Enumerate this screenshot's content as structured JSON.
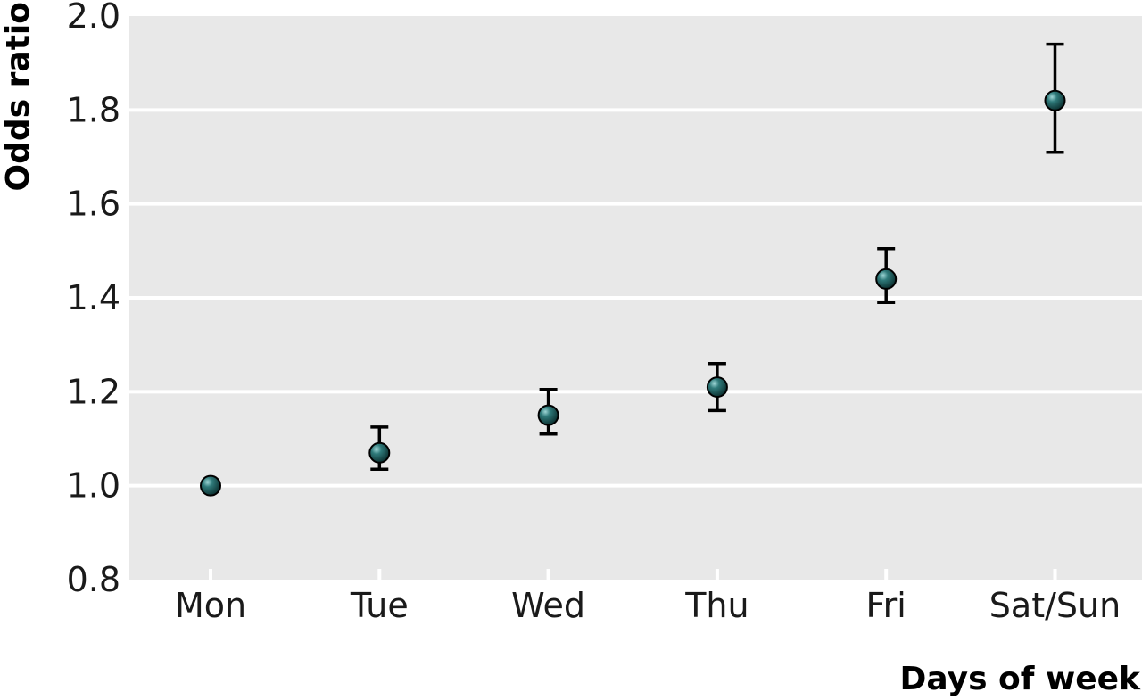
{
  "chart_data": {
    "type": "scatter",
    "title": "",
    "xlabel": "Days of week",
    "ylabel": "Odds ratio",
    "categories": [
      "Mon",
      "Tue",
      "Wed",
      "Thu",
      "Fri",
      "Sat/Sun"
    ],
    "values": [
      1.0,
      1.07,
      1.15,
      1.21,
      1.44,
      1.82
    ],
    "ci_lower": [
      1.0,
      1.035,
      1.11,
      1.16,
      1.39,
      1.71
    ],
    "ci_upper": [
      1.0,
      1.125,
      1.205,
      1.26,
      1.505,
      1.94
    ],
    "ylim": [
      0.8,
      2.0
    ],
    "yticks": [
      "0.8",
      "1.0",
      "1.2",
      "1.4",
      "1.6",
      "1.8",
      "2.0"
    ],
    "grid": true,
    "legend": "none",
    "colors": {
      "plot_background": "#e8e8e8",
      "gridline": "#ffffff",
      "marker": "#1f5656",
      "error_bar": "#000000"
    }
  }
}
